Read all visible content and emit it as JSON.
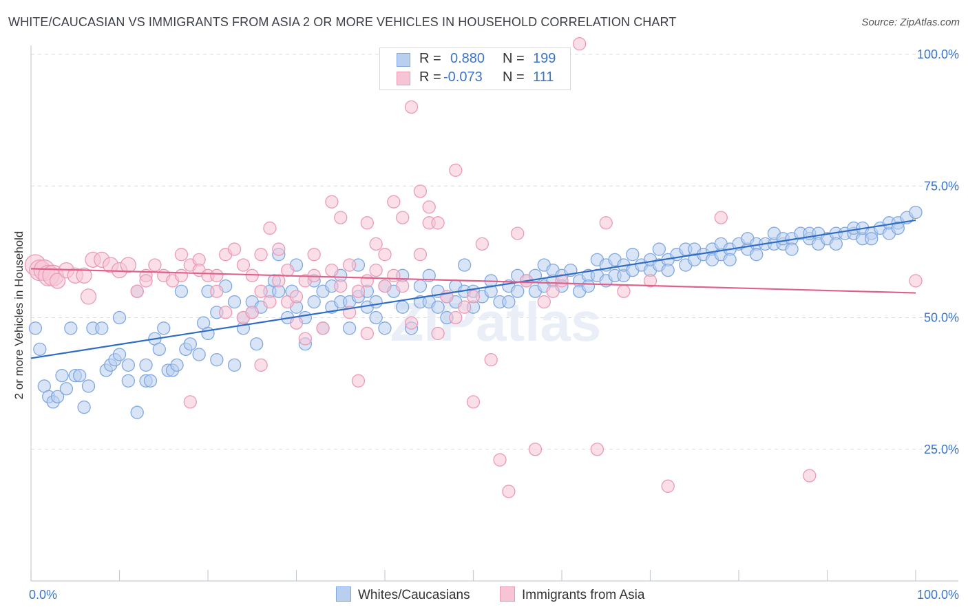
{
  "title": "WHITE/CAUCASIAN VS IMMIGRANTS FROM ASIA 2 OR MORE VEHICLES IN HOUSEHOLD CORRELATION CHART",
  "source": "Source: ZipAtlas.com",
  "watermark": "ZIPatlas",
  "legend": {
    "r_label": "R =",
    "n_label": "N =",
    "rows": [
      {
        "r": "0.880",
        "n": "199"
      },
      {
        "r": "-0.073",
        "n": "111"
      }
    ]
  },
  "chart_data": {
    "type": "scatter",
    "xlabel": "",
    "ylabel": "2 or more Vehicles in Household",
    "xlim": [
      0,
      100
    ],
    "ylim": [
      0,
      105
    ],
    "x_tick_labels": [
      "0.0%",
      "100.0%"
    ],
    "y_tick_labels": [
      "100.0%",
      "75.0%",
      "50.0%",
      "25.0%"
    ],
    "y_ticks": [
      100,
      75,
      50,
      25
    ],
    "grid": "horizontal dashed",
    "legend_placement": "top-center",
    "series": [
      {
        "name": "Whites/Caucasians",
        "color": "#7fa8e0",
        "fill": "#b9cff0",
        "line_color": "#2f6cc4",
        "trend": [
          [
            0,
            42.3
          ],
          [
            100,
            68.5
          ]
        ],
        "points": [
          [
            0.5,
            48
          ],
          [
            1,
            44
          ],
          [
            1.5,
            37
          ],
          [
            2,
            35
          ],
          [
            2.5,
            34
          ],
          [
            3,
            35
          ],
          [
            3.5,
            39
          ],
          [
            4,
            36.5
          ],
          [
            4.5,
            48
          ],
          [
            5,
            39
          ],
          [
            5.5,
            39
          ],
          [
            6,
            33
          ],
          [
            6.5,
            37
          ],
          [
            7,
            48
          ],
          [
            8,
            48
          ],
          [
            8.5,
            40
          ],
          [
            9,
            41
          ],
          [
            9.5,
            42
          ],
          [
            10,
            43
          ],
          [
            10,
            50
          ],
          [
            11,
            38
          ],
          [
            11,
            41
          ],
          [
            12,
            32
          ],
          [
            12,
            55
          ],
          [
            13,
            38
          ],
          [
            13,
            41
          ],
          [
            13.5,
            38
          ],
          [
            14,
            46
          ],
          [
            14.5,
            44
          ],
          [
            15,
            48
          ],
          [
            15.5,
            40
          ],
          [
            16,
            40
          ],
          [
            16.5,
            41
          ],
          [
            17,
            55
          ],
          [
            17.5,
            44
          ],
          [
            18,
            45
          ],
          [
            19,
            43
          ],
          [
            19.5,
            49
          ],
          [
            20,
            47
          ],
          [
            20,
            55
          ],
          [
            21,
            42
          ],
          [
            21,
            51
          ],
          [
            22,
            56
          ],
          [
            23,
            53
          ],
          [
            23,
            41
          ],
          [
            24,
            48
          ],
          [
            24,
            50
          ],
          [
            25,
            51
          ],
          [
            25,
            53
          ],
          [
            25.5,
            45
          ],
          [
            26,
            52
          ],
          [
            27,
            55
          ],
          [
            27.5,
            57
          ],
          [
            28,
            55
          ],
          [
            28,
            62
          ],
          [
            29,
            50
          ],
          [
            29.5,
            55
          ],
          [
            30,
            52
          ],
          [
            30,
            60
          ],
          [
            31,
            45
          ],
          [
            31,
            50
          ],
          [
            32,
            53
          ],
          [
            32,
            57
          ],
          [
            33,
            48
          ],
          [
            33,
            55
          ],
          [
            34,
            52
          ],
          [
            34,
            56
          ],
          [
            35,
            53
          ],
          [
            35,
            58
          ],
          [
            36,
            48
          ],
          [
            36,
            53
          ],
          [
            37,
            54
          ],
          [
            37,
            60
          ],
          [
            38,
            52
          ],
          [
            38,
            55
          ],
          [
            39,
            50
          ],
          [
            39,
            53
          ],
          [
            40,
            56
          ],
          [
            40,
            48
          ],
          [
            41,
            55
          ],
          [
            42,
            52
          ],
          [
            42,
            58
          ],
          [
            43,
            48
          ],
          [
            44,
            53
          ],
          [
            44,
            56
          ],
          [
            45,
            53
          ],
          [
            45,
            58
          ],
          [
            46,
            55
          ],
          [
            46,
            52
          ],
          [
            47,
            50
          ],
          [
            47,
            54
          ],
          [
            48,
            56
          ],
          [
            48,
            53
          ],
          [
            49,
            55
          ],
          [
            49,
            60
          ],
          [
            50,
            55
          ],
          [
            50,
            52
          ],
          [
            51,
            54
          ],
          [
            52,
            55
          ],
          [
            52,
            57
          ],
          [
            53,
            53
          ],
          [
            54,
            56
          ],
          [
            54,
            53
          ],
          [
            55,
            58
          ],
          [
            55,
            55
          ],
          [
            56,
            57
          ],
          [
            57,
            55
          ],
          [
            57,
            58
          ],
          [
            58,
            60
          ],
          [
            58,
            56
          ],
          [
            59,
            57
          ],
          [
            59,
            59
          ],
          [
            60,
            58
          ],
          [
            60,
            56
          ],
          [
            61,
            59
          ],
          [
            62,
            57
          ],
          [
            62,
            55
          ],
          [
            63,
            58
          ],
          [
            63,
            56
          ],
          [
            64,
            58
          ],
          [
            64,
            61
          ],
          [
            65,
            57
          ],
          [
            65,
            60
          ],
          [
            66,
            58
          ],
          [
            66,
            61
          ],
          [
            67,
            58
          ],
          [
            67,
            60
          ],
          [
            68,
            59
          ],
          [
            68,
            62
          ],
          [
            69,
            60
          ],
          [
            70,
            59
          ],
          [
            70,
            61
          ],
          [
            71,
            60
          ],
          [
            71,
            63
          ],
          [
            72,
            61
          ],
          [
            72,
            59
          ],
          [
            73,
            62
          ],
          [
            74,
            60
          ],
          [
            74,
            63
          ],
          [
            75,
            61
          ],
          [
            75,
            63
          ],
          [
            76,
            62
          ],
          [
            77,
            63
          ],
          [
            77,
            61
          ],
          [
            78,
            62
          ],
          [
            78,
            64
          ],
          [
            79,
            63
          ],
          [
            79,
            61
          ],
          [
            80,
            64
          ],
          [
            81,
            63
          ],
          [
            81,
            65
          ],
          [
            82,
            64
          ],
          [
            82,
            62
          ],
          [
            83,
            64
          ],
          [
            84,
            64
          ],
          [
            84,
            66
          ],
          [
            85,
            64
          ],
          [
            85,
            65
          ],
          [
            86,
            65
          ],
          [
            86,
            63
          ],
          [
            87,
            66
          ],
          [
            88,
            65
          ],
          [
            88,
            66
          ],
          [
            89,
            66
          ],
          [
            89,
            64
          ],
          [
            90,
            65
          ],
          [
            91,
            66
          ],
          [
            91,
            64
          ],
          [
            92,
            66
          ],
          [
            93,
            66
          ],
          [
            93,
            67
          ],
          [
            94,
            65
          ],
          [
            94,
            67
          ],
          [
            95,
            66
          ],
          [
            95,
            65
          ],
          [
            96,
            67
          ],
          [
            97,
            66
          ],
          [
            97,
            68
          ],
          [
            98,
            68
          ],
          [
            98,
            67
          ],
          [
            99,
            69
          ],
          [
            100,
            70
          ]
        ]
      },
      {
        "name": "Immigrants from Asia",
        "color": "#eb9ab5",
        "fill": "#f6c4d5",
        "line_color": "#e0608a",
        "trend": [
          [
            0,
            59.3
          ],
          [
            100,
            54.7
          ]
        ],
        "points": [
          [
            0.5,
            60
          ],
          [
            1,
            59
          ],
          [
            1.5,
            59
          ],
          [
            2,
            58
          ],
          [
            2.5,
            58
          ],
          [
            3,
            57
          ],
          [
            4,
            59
          ],
          [
            5,
            58
          ],
          [
            6,
            58
          ],
          [
            6.5,
            54
          ],
          [
            7,
            61
          ],
          [
            8,
            61
          ],
          [
            9,
            60
          ],
          [
            10,
            59
          ],
          [
            11,
            60
          ],
          [
            12,
            55
          ],
          [
            13,
            58
          ],
          [
            13,
            57
          ],
          [
            14,
            60
          ],
          [
            15,
            58
          ],
          [
            16,
            57
          ],
          [
            17,
            62
          ],
          [
            17,
            58
          ],
          [
            18,
            60
          ],
          [
            19,
            61
          ],
          [
            19,
            59
          ],
          [
            20,
            58
          ],
          [
            21,
            58
          ],
          [
            21,
            55
          ],
          [
            22,
            51
          ],
          [
            22,
            62
          ],
          [
            23,
            63
          ],
          [
            24,
            50
          ],
          [
            24,
            60
          ],
          [
            25,
            51
          ],
          [
            25,
            58
          ],
          [
            26,
            62
          ],
          [
            26,
            55
          ],
          [
            27,
            67
          ],
          [
            27,
            53
          ],
          [
            28,
            57
          ],
          [
            28,
            63
          ],
          [
            29,
            59
          ],
          [
            29,
            53
          ],
          [
            30,
            54
          ],
          [
            30,
            49
          ],
          [
            31,
            57
          ],
          [
            31,
            46
          ],
          [
            32,
            62
          ],
          [
            32,
            58
          ],
          [
            33,
            48
          ],
          [
            34,
            72
          ],
          [
            34,
            59
          ],
          [
            35,
            69
          ],
          [
            35,
            56
          ],
          [
            36,
            60
          ],
          [
            36,
            51
          ],
          [
            37,
            55
          ],
          [
            37,
            38
          ],
          [
            38,
            68
          ],
          [
            38,
            57
          ],
          [
            39,
            59
          ],
          [
            39,
            64
          ],
          [
            40,
            62
          ],
          [
            40,
            56
          ],
          [
            41,
            72
          ],
          [
            41,
            58
          ],
          [
            42,
            69
          ],
          [
            42,
            56
          ],
          [
            43,
            49
          ],
          [
            43,
            90
          ],
          [
            44,
            74
          ],
          [
            44,
            62
          ],
          [
            45,
            71
          ],
          [
            45,
            68
          ],
          [
            46,
            68
          ],
          [
            47,
            54
          ],
          [
            48,
            50
          ],
          [
            48,
            78
          ],
          [
            49,
            52
          ],
          [
            50,
            34
          ],
          [
            51,
            64
          ],
          [
            52,
            42
          ],
          [
            53,
            23
          ],
          [
            54,
            17
          ],
          [
            55,
            66
          ],
          [
            56,
            57
          ],
          [
            57,
            25
          ],
          [
            58,
            53
          ],
          [
            59,
            55
          ],
          [
            60,
            57
          ],
          [
            64,
            25
          ],
          [
            65,
            68
          ],
          [
            67,
            55
          ],
          [
            70,
            57
          ],
          [
            72,
            18
          ],
          [
            78,
            69
          ],
          [
            88,
            20
          ],
          [
            100,
            57
          ],
          [
            62,
            102
          ],
          [
            18,
            34
          ],
          [
            26,
            41
          ],
          [
            50,
            54
          ],
          [
            46,
            47
          ],
          [
            38,
            47
          ]
        ]
      }
    ]
  }
}
